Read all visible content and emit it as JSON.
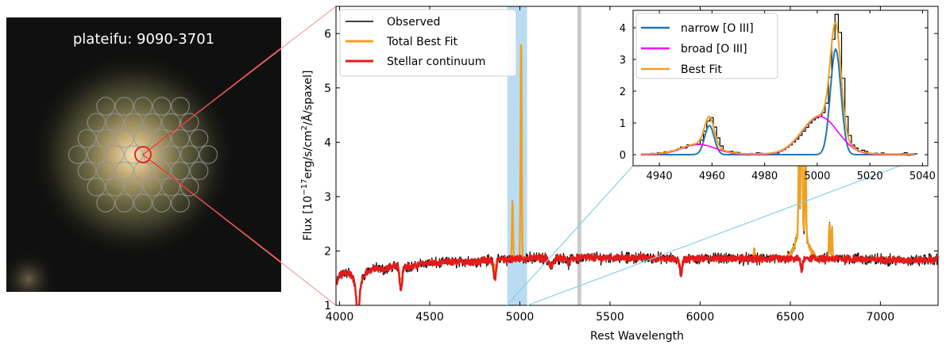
{
  "image_panel": {
    "label": "plateifu: 9090-3701",
    "ifu_fiber_rows": [
      5,
      6,
      7,
      8,
      7,
      6,
      5
    ]
  },
  "chart_data": [
    {
      "type": "line",
      "xlabel": "Rest Wavelength",
      "ylabel": "Flux [10^{-17}erg/s/cm^2/Å/spaxel]",
      "ylabel_parts": [
        "Flux [10",
        "−17",
        "erg/s/cm",
        "2",
        "/Å/spaxel]"
      ],
      "xlim": [
        3980,
        7320
      ],
      "ylim": [
        1,
        6.5
      ],
      "xticks": [
        4000,
        4500,
        5000,
        5500,
        6000,
        6500,
        7000
      ],
      "yticks": [
        1,
        2,
        3,
        4,
        5,
        6
      ],
      "legend": "top-left",
      "highlight_band": {
        "x": [
          4930,
          5040
        ],
        "color": "#aed6f1"
      },
      "marker_line": {
        "x": 5330,
        "color": "#cccccc"
      },
      "continuum": [
        [
          3980,
          1.38
        ],
        [
          4000,
          1.55
        ],
        [
          4050,
          1.62
        ],
        [
          4100,
          1.35
        ],
        [
          4150,
          1.62
        ],
        [
          4200,
          1.68
        ],
        [
          4250,
          1.66
        ],
        [
          4300,
          1.72
        ],
        [
          4350,
          1.74
        ],
        [
          4400,
          1.7
        ],
        [
          4450,
          1.76
        ],
        [
          4500,
          1.78
        ],
        [
          4550,
          1.77
        ],
        [
          4600,
          1.8
        ],
        [
          4650,
          1.79
        ],
        [
          4700,
          1.81
        ],
        [
          4750,
          1.8
        ],
        [
          4800,
          1.83
        ],
        [
          4850,
          1.82
        ],
        [
          4900,
          1.84
        ],
        [
          4950,
          1.85
        ],
        [
          5000,
          1.86
        ],
        [
          5050,
          1.86
        ],
        [
          5100,
          1.87
        ],
        [
          5150,
          1.86
        ],
        [
          5200,
          1.87
        ],
        [
          5250,
          1.88
        ],
        [
          5300,
          1.86
        ],
        [
          5350,
          1.87
        ],
        [
          5400,
          1.88
        ],
        [
          5450,
          1.87
        ],
        [
          5500,
          1.88
        ],
        [
          5600,
          1.87
        ],
        [
          5700,
          1.88
        ],
        [
          5800,
          1.86
        ],
        [
          5900,
          1.85
        ],
        [
          6000,
          1.86
        ],
        [
          6100,
          1.87
        ],
        [
          6200,
          1.86
        ],
        [
          6300,
          1.85
        ],
        [
          6400,
          1.86
        ],
        [
          6500,
          1.85
        ],
        [
          6600,
          1.86
        ],
        [
          6700,
          1.85
        ],
        [
          6800,
          1.86
        ],
        [
          6900,
          1.85
        ],
        [
          7000,
          1.84
        ],
        [
          7100,
          1.83
        ],
        [
          7200,
          1.83
        ],
        [
          7320,
          1.84
        ]
      ],
      "absorption_dips": [
        {
          "x": 4102,
          "depth": 0.55,
          "w": 8
        },
        {
          "x": 4340,
          "depth": 0.45,
          "w": 7
        },
        {
          "x": 4861,
          "depth": 0.35,
          "w": 6
        },
        {
          "x": 5175,
          "depth": 0.15,
          "w": 12
        },
        {
          "x": 5270,
          "depth": 0.1,
          "w": 8
        },
        {
          "x": 5893,
          "depth": 0.3,
          "w": 6
        },
        {
          "x": 6563,
          "depth": 0.25,
          "w": 5
        }
      ],
      "emission_lines": [
        {
          "x": 4341,
          "height": 0.2,
          "w": 3
        },
        {
          "x": 4861,
          "height": 0.25,
          "w": 3
        },
        {
          "x": 4959,
          "height": 1.05,
          "w": 3
        },
        {
          "x": 5007,
          "height": 4.1,
          "w": 3
        },
        {
          "x": 6300,
          "height": 0.2,
          "w": 3
        },
        {
          "x": 6548,
          "height": 1.4,
          "w": 3
        },
        {
          "x": 6563,
          "height": 3.4,
          "w": 4
        },
        {
          "x": 6584,
          "height": 2.0,
          "w": 3
        },
        {
          "x": 6717,
          "height": 0.65,
          "w": 3
        },
        {
          "x": 6731,
          "height": 0.55,
          "w": 3
        }
      ],
      "broad_halpha": {
        "x": 6563,
        "height": 0.55,
        "w": 32
      },
      "series": [
        {
          "name": "Observed",
          "color": "#000000",
          "width": 1.2
        },
        {
          "name": "Total Best Fit",
          "color": "#f0a020",
          "width": 2.4
        },
        {
          "name": "Stellar continuum",
          "color": "#e41a1c",
          "width": 2.4
        }
      ]
    },
    {
      "type": "line",
      "xlim": [
        4930,
        5042
      ],
      "ylim": [
        -0.35,
        4.55
      ],
      "xticks": [
        4940,
        4960,
        4980,
        5000,
        5020,
        5040
      ],
      "yticks": [
        0,
        1,
        2,
        3,
        4
      ],
      "legend": "top-left",
      "narrow_components": [
        {
          "center": 4959,
          "amp": 0.92,
          "sigma": 1.8
        },
        {
          "center": 5007,
          "amp": 3.33,
          "sigma": 2.0
        }
      ],
      "broad_components": [
        {
          "center": 4955,
          "amp": 0.32,
          "sigma": 6.5
        },
        {
          "center": 5001,
          "amp": 1.2,
          "sigma": 6.8
        }
      ],
      "observed_peaks": [
        {
          "x": 4959,
          "y": 1.18
        },
        {
          "x": 5007,
          "y": 4.38
        }
      ],
      "series": [
        {
          "name": "narrow [O III]",
          "color": "#1f77b4",
          "width": 2
        },
        {
          "name": "broad [O III]",
          "color": "#ff00ff",
          "width": 1.6
        },
        {
          "name": "Best Fit",
          "color": "#f0a020",
          "width": 2
        }
      ]
    }
  ]
}
